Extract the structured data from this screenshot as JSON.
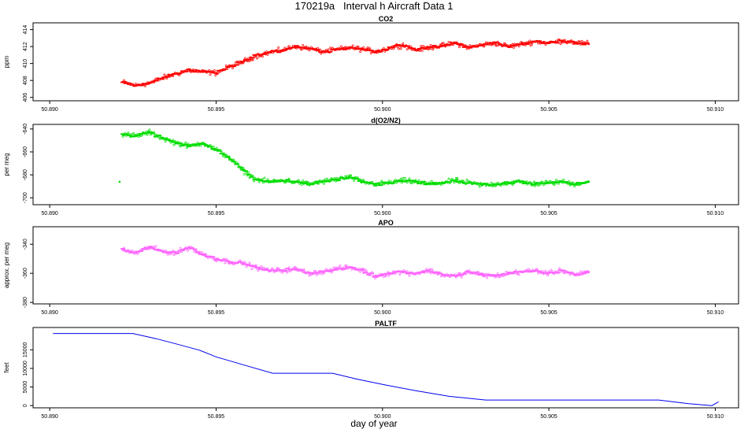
{
  "page": {
    "title": "170219a   Interval h Aircraft Data 1",
    "xlabel": "day of year"
  },
  "chart_data": [
    {
      "type": "scatter",
      "title": "CO2",
      "ylabel": "ppm",
      "xlim": [
        50.8895,
        50.9107
      ],
      "ylim": [
        405.6,
        414.8
      ],
      "x_ticks": [
        "50.890",
        "50.895",
        "50.900",
        "50.905",
        "50.910"
      ],
      "y_ticks": [
        "406",
        "408",
        "410",
        "412",
        "414"
      ],
      "color": "#ff0000",
      "series_x": [
        50.8922,
        50.8926,
        50.893,
        50.8934,
        50.8938,
        50.8942,
        50.8946,
        50.895,
        50.8954,
        50.8958,
        50.8962,
        50.8966,
        50.897,
        50.8974,
        50.8978,
        50.8982,
        50.8986,
        50.899,
        50.8994,
        50.8998,
        50.9002,
        50.9006,
        50.901,
        50.9014,
        50.9018,
        50.9022,
        50.9026,
        50.903,
        50.9034,
        50.9038,
        50.9042,
        50.9046,
        50.905,
        50.9054,
        50.9058,
        50.9062
      ],
      "series_y": [
        407.8,
        407.4,
        407.7,
        408.3,
        408.8,
        409.2,
        409.0,
        408.9,
        409.6,
        410.2,
        410.9,
        411.3,
        411.6,
        412.0,
        411.8,
        411.4,
        411.6,
        411.9,
        411.7,
        411.4,
        411.8,
        412.2,
        411.6,
        411.9,
        412.1,
        412.4,
        411.9,
        412.2,
        412.4,
        412.0,
        412.3,
        412.6,
        412.4,
        412.7,
        412.5,
        412.3
      ]
    },
    {
      "type": "scatter",
      "title": "d(O2/N2)",
      "ylabel": "per meg",
      "xlim": [
        50.8895,
        50.9107
      ],
      "ylim": [
        -706,
        -636
      ],
      "x_ticks": [
        "50.890",
        "50.895",
        "50.900",
        "50.905",
        "50.910"
      ],
      "y_ticks": [
        "-640",
        "-660",
        "-680",
        "-700"
      ],
      "color": "#00dd00",
      "series_x": [
        50.8921,
        50.8922,
        50.8926,
        50.893,
        50.8934,
        50.8938,
        50.8942,
        50.8946,
        50.895,
        50.8954,
        50.8958,
        50.8962,
        50.8966,
        50.897,
        50.8974,
        50.8978,
        50.8982,
        50.8986,
        50.899,
        50.8994,
        50.8998,
        50.9002,
        50.9006,
        50.901,
        50.9014,
        50.9018,
        50.9022,
        50.9026,
        50.903,
        50.9034,
        50.9038,
        50.9042,
        50.9046,
        50.905,
        50.9054,
        50.9058,
        50.9062
      ],
      "series_y": [
        -686,
        -645,
        -646,
        -643,
        -648,
        -652,
        -655,
        -652,
        -658,
        -665,
        -676,
        -684,
        -686,
        -685,
        -686,
        -688,
        -686,
        -684,
        -682,
        -686,
        -688,
        -687,
        -685,
        -686,
        -688,
        -687,
        -685,
        -687,
        -689,
        -688,
        -687,
        -686,
        -688,
        -687,
        -686,
        -688,
        -686
      ]
    },
    {
      "type": "scatter",
      "title": "APO",
      "ylabel": "approx. per meg",
      "xlim": [
        50.8895,
        50.9107
      ],
      "ylim": [
        -381,
        -328
      ],
      "x_ticks": [
        "50.890",
        "50.895",
        "50.900",
        "50.905",
        "50.910"
      ],
      "y_ticks": [
        "-340",
        "-360",
        "-380"
      ],
      "color": "#ff66ff",
      "series_x": [
        50.8922,
        50.8926,
        50.893,
        50.8934,
        50.8938,
        50.8942,
        50.8946,
        50.895,
        50.8954,
        50.8958,
        50.8962,
        50.8966,
        50.897,
        50.8974,
        50.8978,
        50.8982,
        50.8986,
        50.899,
        50.8994,
        50.8998,
        50.9002,
        50.9006,
        50.901,
        50.9014,
        50.9018,
        50.9022,
        50.9026,
        50.903,
        50.9034,
        50.9038,
        50.9042,
        50.9046,
        50.905,
        50.9054,
        50.9058,
        50.9062
      ],
      "series_y": [
        -344,
        -346,
        -342,
        -345,
        -346,
        -342,
        -347,
        -350,
        -352,
        -353,
        -356,
        -358,
        -358,
        -357,
        -360,
        -359,
        -357,
        -356,
        -358,
        -362,
        -360,
        -359,
        -360,
        -358,
        -361,
        -362,
        -359,
        -361,
        -362,
        -360,
        -359,
        -358,
        -360,
        -358,
        -361,
        -359
      ]
    },
    {
      "type": "line",
      "title": "PALTF",
      "ylabel": "feet",
      "xlim": [
        50.8895,
        50.9107
      ],
      "ylim": [
        -600,
        21000
      ],
      "x_ticks": [
        "50.890",
        "50.895",
        "50.900",
        "50.905",
        "50.910"
      ],
      "y_ticks": [
        "0",
        "5000",
        "10000",
        "15000"
      ],
      "color": "#0000ee",
      "x": [
        50.8901,
        50.8925,
        50.8932,
        50.8938,
        50.8945,
        50.895,
        50.8958,
        50.8967,
        50.8977,
        50.8985,
        50.8992,
        50.9,
        50.901,
        50.902,
        50.9031,
        50.905,
        50.9083,
        50.9092,
        50.9099,
        50.9101
      ],
      "y": [
        19400,
        19400,
        18000,
        16600,
        14900,
        13100,
        11000,
        8700,
        8700,
        8700,
        7200,
        5700,
        4000,
        2500,
        1500,
        1500,
        1500,
        500,
        0,
        1000
      ]
    }
  ]
}
